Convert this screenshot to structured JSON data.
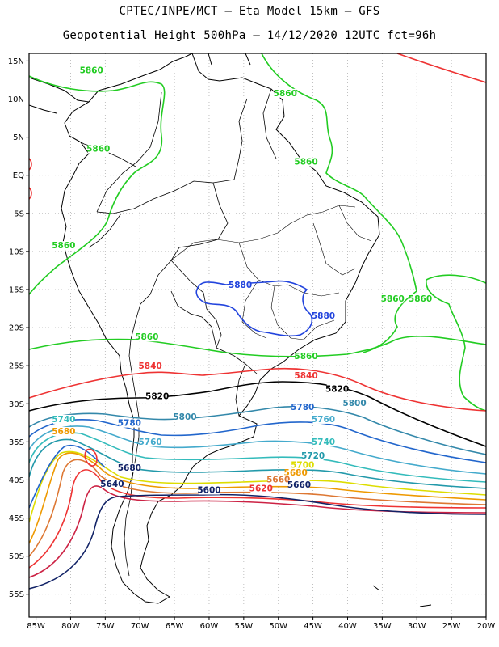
{
  "header": {
    "title_line1": "CPTEC/INPE/MCT  –  Eta Model 15km  –  GFS",
    "title_line2": "Geopotential Height 500hPa – 14/12/2020 12UTC fct=96h"
  },
  "axes": {
    "lon_labels": [
      "85W",
      "80W",
      "75W",
      "70W",
      "65W",
      "60W",
      "55W",
      "50W",
      "45W",
      "40W",
      "35W",
      "30W",
      "25W",
      "20W"
    ],
    "lat_labels": [
      "15N",
      "10N",
      "5N",
      "EQ",
      "5S",
      "10S",
      "15S",
      "20S",
      "25S",
      "30S",
      "35S",
      "40S",
      "45S",
      "50S",
      "55S"
    ],
    "lon_range": [
      -86,
      -20
    ],
    "lat_range": [
      16,
      -58
    ]
  },
  "colors": {
    "c5880": "#2244dd",
    "c5860": "#22cc22",
    "c5840": "#ee3333",
    "c5820": "#000000",
    "c5800": "#3388aa",
    "c5780": "#2266cc",
    "c5760": "#44aacc",
    "c5740": "#33bbbb",
    "c5720": "#2299aa",
    "c5700": "#dddd00",
    "c5680": "#ee9900",
    "c5660": "#dd7733",
    "c5640": "#ee3333",
    "c5620": "#cc2244",
    "c5600": "#112266"
  },
  "contour_labels": [
    {
      "text": "5860",
      "lon": -77,
      "lat": 13.5,
      "color": "#22cc22"
    },
    {
      "text": "5860",
      "lon": -49,
      "lat": 10.5,
      "color": "#22cc22"
    },
    {
      "text": "5860",
      "lon": -76,
      "lat": 3.2,
      "color": "#22cc22"
    },
    {
      "text": "5860",
      "lon": -46,
      "lat": 1.5,
      "color": "#22cc22"
    },
    {
      "text": "5860",
      "lon": -81,
      "lat": -9.5,
      "color": "#22cc22"
    },
    {
      "text": "5880",
      "lon": -55.5,
      "lat": -14.7,
      "color": "#2244dd"
    },
    {
      "text": "5880",
      "lon": -43.5,
      "lat": -18.7,
      "color": "#2244dd"
    },
    {
      "text": "5860",
      "lon": -33.5,
      "lat": -16.5,
      "color": "#22cc22"
    },
    {
      "text": "5860",
      "lon": -29.5,
      "lat": -16.5,
      "color": "#22cc22"
    },
    {
      "text": "5860",
      "lon": -69,
      "lat": -21.5,
      "color": "#22cc22"
    },
    {
      "text": "5860",
      "lon": -46,
      "lat": -24,
      "color": "#22cc22"
    },
    {
      "text": "5840",
      "lon": -68.5,
      "lat": -25.3,
      "color": "#ee3333"
    },
    {
      "text": "5840",
      "lon": -46,
      "lat": -26.6,
      "color": "#ee3333"
    },
    {
      "text": "5820",
      "lon": -67.5,
      "lat": -29.3,
      "color": "#000000"
    },
    {
      "text": "5820",
      "lon": -41.5,
      "lat": -28.3,
      "color": "#000000"
    },
    {
      "text": "5800",
      "lon": -39,
      "lat": -30.2,
      "color": "#3388aa"
    },
    {
      "text": "5800",
      "lon": -63.5,
      "lat": -32,
      "color": "#3388aa"
    },
    {
      "text": "5780",
      "lon": -46.5,
      "lat": -30.7,
      "color": "#2266cc"
    },
    {
      "text": "5780",
      "lon": -71.5,
      "lat": -32.8,
      "color": "#2266cc"
    },
    {
      "text": "5760",
      "lon": -43.5,
      "lat": -32.3,
      "color": "#44aacc"
    },
    {
      "text": "5760",
      "lon": -68.5,
      "lat": -35.3,
      "color": "#44aacc"
    },
    {
      "text": "5740",
      "lon": -81,
      "lat": -32.3,
      "color": "#33bbbb"
    },
    {
      "text": "5740",
      "lon": -43.5,
      "lat": -35.3,
      "color": "#33bbbb"
    },
    {
      "text": "5720",
      "lon": -45,
      "lat": -37.1,
      "color": "#2299aa"
    },
    {
      "text": "5680",
      "lon": -81,
      "lat": -33.9,
      "color": "#ee9900"
    },
    {
      "text": "5700",
      "lon": -46.5,
      "lat": -38.3,
      "color": "#dddd00"
    },
    {
      "text": "5680",
      "lon": -71.5,
      "lat": -38.7,
      "color": "#112266"
    },
    {
      "text": "5680",
      "lon": -47.5,
      "lat": -39.3,
      "color": "#ee9900"
    },
    {
      "text": "5660",
      "lon": -50,
      "lat": -40.2,
      "color": "#dd7733"
    },
    {
      "text": "5660",
      "lon": -47,
      "lat": -40.9,
      "color": "#112266"
    },
    {
      "text": "5640",
      "lon": -74,
      "lat": -40.8,
      "color": "#112266"
    },
    {
      "text": "5620",
      "lon": -52.5,
      "lat": -41.4,
      "color": "#ee3333"
    },
    {
      "text": "5600",
      "lon": -60,
      "lat": -41.6,
      "color": "#112266"
    }
  ]
}
